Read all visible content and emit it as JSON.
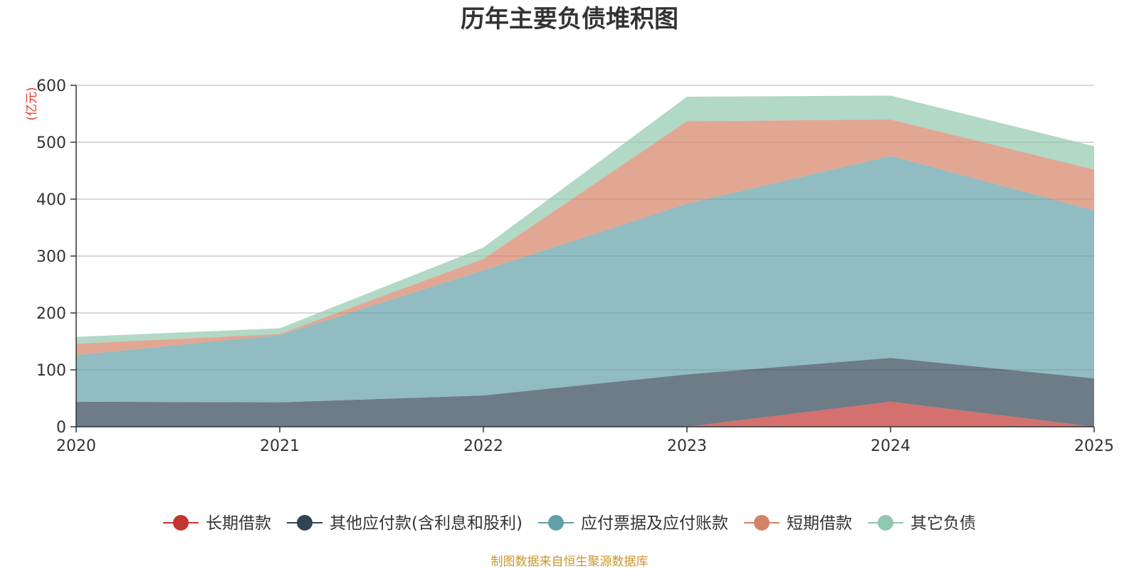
{
  "chart_data": {
    "type": "area",
    "stacked": true,
    "title": "历年主要负债堆积图",
    "unit": "(亿元)",
    "x": [
      "2020",
      "2021",
      "2022",
      "2023",
      "2024",
      "2025"
    ],
    "ylim": [
      0,
      600
    ],
    "yticks": [
      "0",
      "100",
      "200",
      "300",
      "400",
      "500",
      "600"
    ],
    "grid": true,
    "legend_position": "bottom",
    "series": [
      {
        "name": "长期借款",
        "color": "#c23531",
        "values": [
          0,
          0,
          0,
          0,
          44,
          0
        ]
      },
      {
        "name": "其他应付款(含利息和股利)",
        "color": "#2f4554",
        "values": [
          44,
          43,
          55,
          92,
          77,
          85
        ]
      },
      {
        "name": "应付票据及应付账款",
        "color": "#61a0a8",
        "values": [
          82,
          118,
          220,
          300,
          355,
          295
        ]
      },
      {
        "name": "短期借款",
        "color": "#d48265",
        "values": [
          20,
          2,
          20,
          145,
          64,
          72
        ]
      },
      {
        "name": "其它负债",
        "color": "#91c7ae",
        "values": [
          12,
          10,
          20,
          43,
          42,
          41
        ]
      }
    ],
    "source": "制图数据来自恒生聚源数据库"
  }
}
